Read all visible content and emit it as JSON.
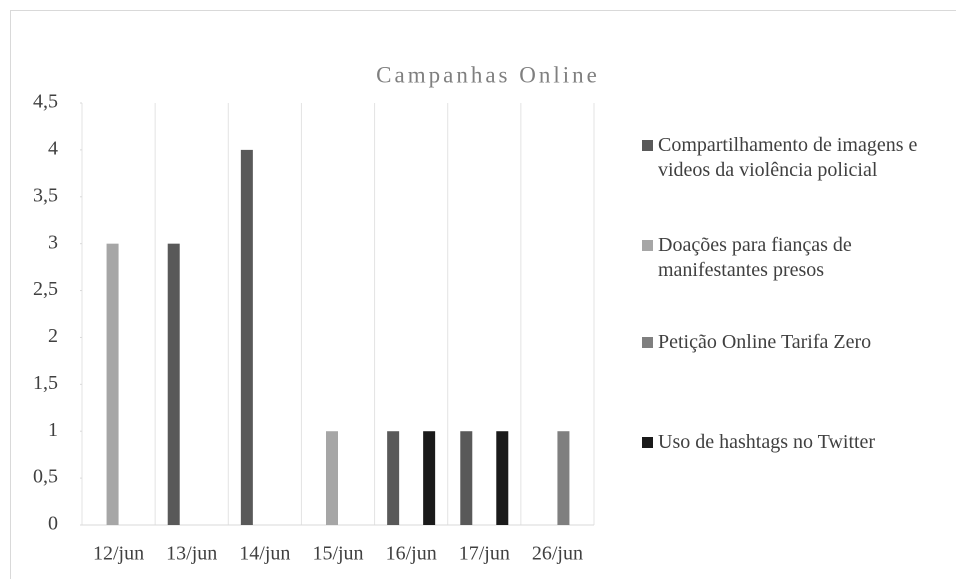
{
  "chart_data": {
    "type": "bar",
    "title": "Campanhas Online",
    "categories": [
      "12/jun",
      "13/jun",
      "14/jun",
      "15/jun",
      "16/jun",
      "17/jun",
      "26/jun"
    ],
    "series": [
      {
        "name": "Compartilhamento de imagens e videos da violência policial",
        "color": "#595959",
        "values": [
          0,
          3,
          4,
          0,
          1,
          1,
          0
        ]
      },
      {
        "name": "Doações para fianças de manifestantes presos",
        "color": "#a6a6a6",
        "values": [
          3,
          0,
          0,
          1,
          0,
          0,
          0
        ]
      },
      {
        "name": "Petição Online Tarifa Zero",
        "color": "#7f7f7f",
        "values": [
          0,
          0,
          0,
          0,
          0,
          0,
          1
        ]
      },
      {
        "name": "Uso de hashtags no Twitter",
        "color": "#1a1a1a",
        "values": [
          0,
          0,
          0,
          0,
          1,
          1,
          0
        ]
      }
    ],
    "ylim": [
      0,
      4.5
    ],
    "yticks": [
      0,
      {
        "value": 0.5,
        "label": "0,5"
      },
      1,
      {
        "value": 1.5,
        "label": "1,5"
      },
      2,
      {
        "value": 2.5,
        "label": "2,5"
      },
      3,
      {
        "value": 3.5,
        "label": "3,5"
      },
      4,
      {
        "value": 4.5,
        "label": "4,5"
      }
    ],
    "legend": "right"
  }
}
